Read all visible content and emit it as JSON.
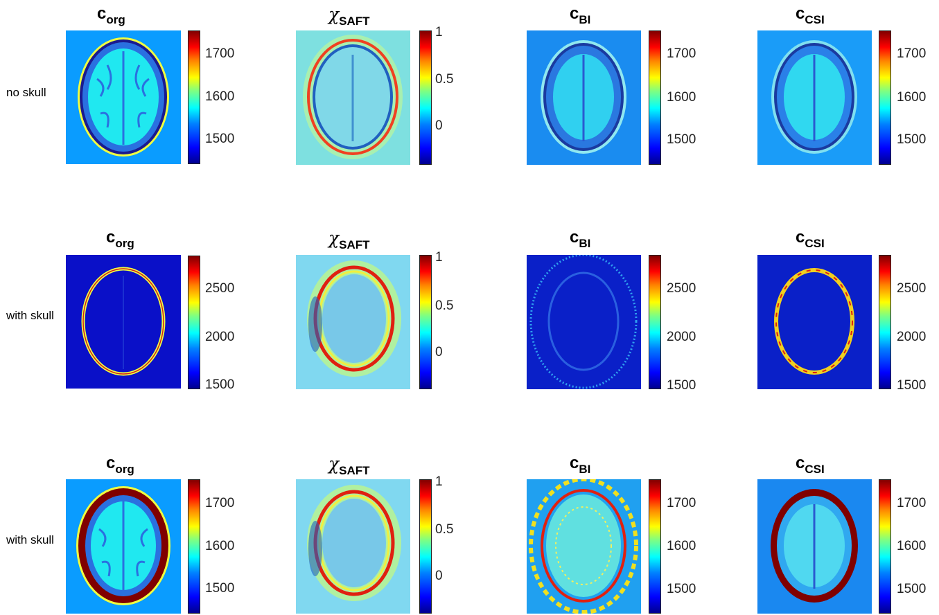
{
  "row_labels": [
    "no skull",
    "with skull",
    "with skull"
  ],
  "titles": {
    "org": {
      "main": "c",
      "sub": "org"
    },
    "saft": {
      "main": "χ",
      "sub": "SAFT"
    },
    "bi": {
      "main": "c",
      "sub": "BI"
    },
    "csi": {
      "main": "c",
      "sub": "CSI"
    }
  },
  "colormap": "jet",
  "rows": [
    {
      "scale_speed": [
        "1700",
        "1600",
        "1500"
      ],
      "scale_saft": [
        "1",
        "0.5",
        "0"
      ]
    },
    {
      "scale_speed": [
        "2500",
        "2000",
        "1500"
      ],
      "scale_saft": [
        "1",
        "0.5",
        "0"
      ]
    },
    {
      "scale_speed": [
        "1700",
        "1600",
        "1500"
      ],
      "scale_saft": [
        "1",
        "0.5",
        "0"
      ]
    }
  ]
}
